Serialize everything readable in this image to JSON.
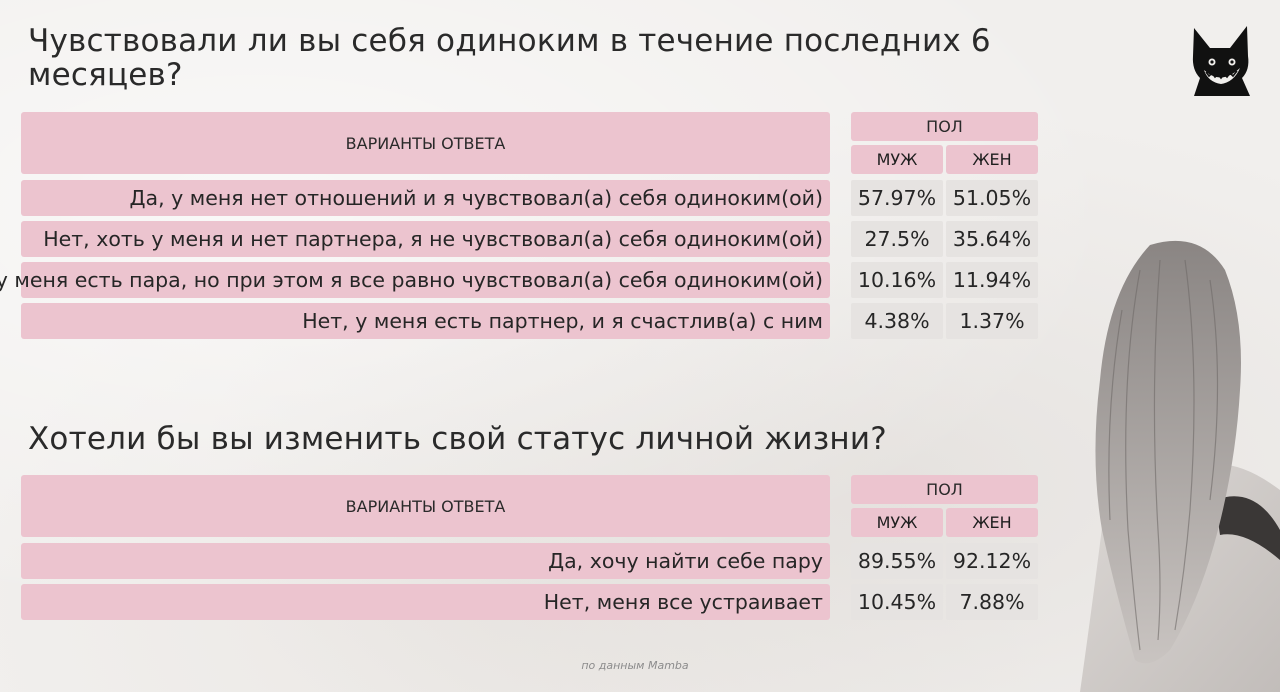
{
  "chart_data": [
    {
      "type": "table",
      "title": "Чувствовали ли вы себя одиноким в течение последних 6 месяцев?",
      "header": {
        "options": "ВАРИАНТЫ ОТВЕТА",
        "group": "ПОЛ",
        "male": "МУЖ",
        "female": "ЖЕН"
      },
      "rows": [
        {
          "label": "Да, у меня нет отношений и я чувствовал(а) себя одиноким(ой)",
          "male": "57.97%",
          "female": "51.05%"
        },
        {
          "label": "Нет, хоть у меня и нет партнера, я не чувствовал(а) себя одиноким(ой)",
          "male": "27.5%",
          "female": "35.64%"
        },
        {
          "label": "Да, у меня есть пара, но при этом я все равно чувствовал(а) себя одиноким(ой)",
          "male": "10.16%",
          "female": "11.94%"
        },
        {
          "label": "Нет, у меня есть партнер, и я счастлив(а) с ним",
          "male": "4.38%",
          "female": "1.37%"
        }
      ]
    },
    {
      "type": "table",
      "title": "Хотели бы вы изменить свой статус личной жизни?",
      "header": {
        "options": "ВАРИАНТЫ ОТВЕТА",
        "group": "ПОЛ",
        "male": "МУЖ",
        "female": "ЖЕН"
      },
      "rows": [
        {
          "label": "Да, хочу найти себе пару",
          "male": "89.55%",
          "female": "92.12%"
        },
        {
          "label": "Нет, меня все устраивает",
          "male": "10.45%",
          "female": "7.88%"
        }
      ]
    }
  ],
  "source": "по данным Mamba",
  "colors": {
    "header_pink": "#ecc4cf",
    "value_gray": "#e6e3e1",
    "background": "#f1efed"
  },
  "logo": {
    "icon": "mamba-cat-logo-icon"
  }
}
